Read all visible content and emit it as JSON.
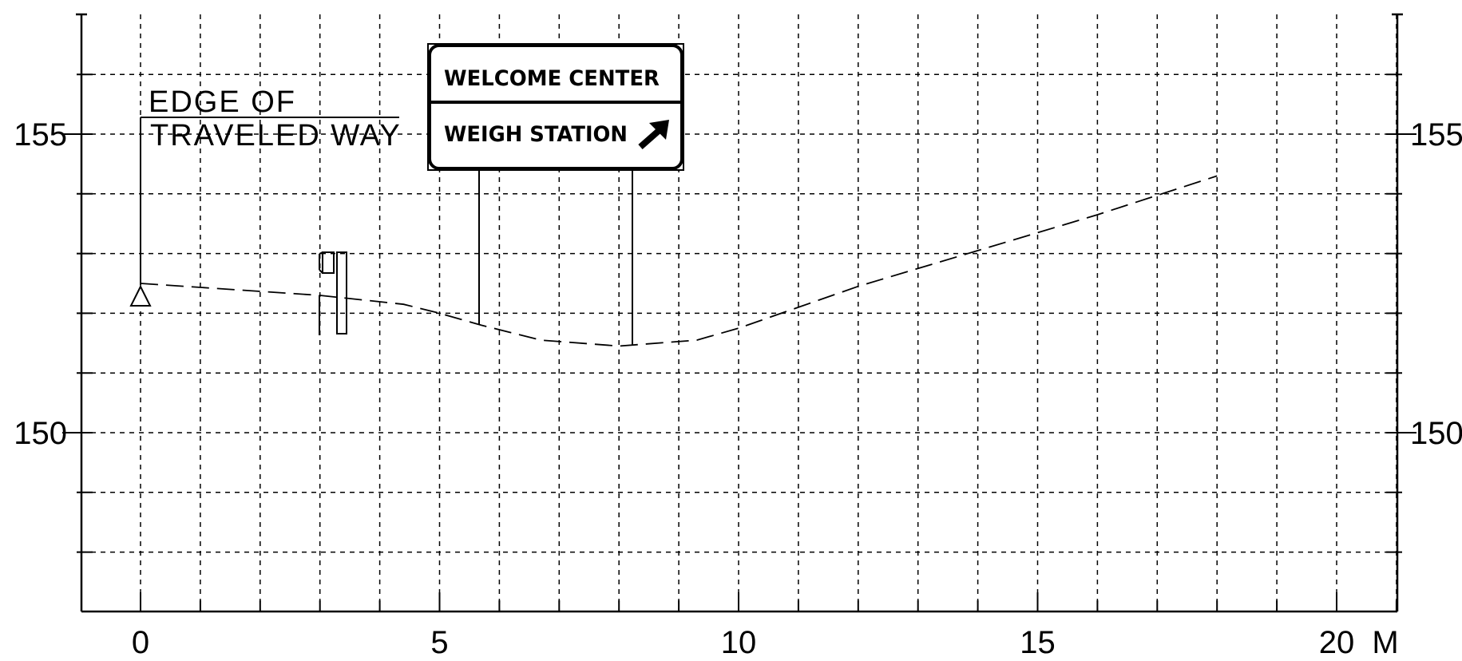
{
  "drawing": {
    "x_axis": {
      "ticks": [
        0,
        5,
        10,
        15,
        20
      ],
      "tick_labels": [
        "0",
        "5",
        "10",
        "15",
        "20"
      ],
      "unit_label": "M",
      "range": [
        -1,
        21
      ]
    },
    "y_axis": {
      "ticks": [
        150,
        155
      ],
      "tick_labels": [
        "150",
        "155"
      ],
      "range": [
        147,
        157
      ]
    },
    "grid": true,
    "note": {
      "line1": "EDGE OF",
      "line2": "TRAVELED WAY"
    },
    "sign": {
      "line1": "WELCOME CENTER",
      "line2": "WEIGH STATION",
      "arrow": "up-right-arrow"
    },
    "ground_profile": [
      [
        0,
        152.5
      ],
      [
        3,
        152.3
      ],
      [
        4.4,
        152.15
      ],
      [
        5,
        152.0
      ],
      [
        5.7,
        151.8
      ],
      [
        6.7,
        151.55
      ],
      [
        8.0,
        151.45
      ],
      [
        9.3,
        151.55
      ],
      [
        10.0,
        151.75
      ],
      [
        11.0,
        152.1
      ],
      [
        12.0,
        152.45
      ],
      [
        14.0,
        153.05
      ],
      [
        16.0,
        153.65
      ],
      [
        18.0,
        154.3
      ]
    ]
  }
}
